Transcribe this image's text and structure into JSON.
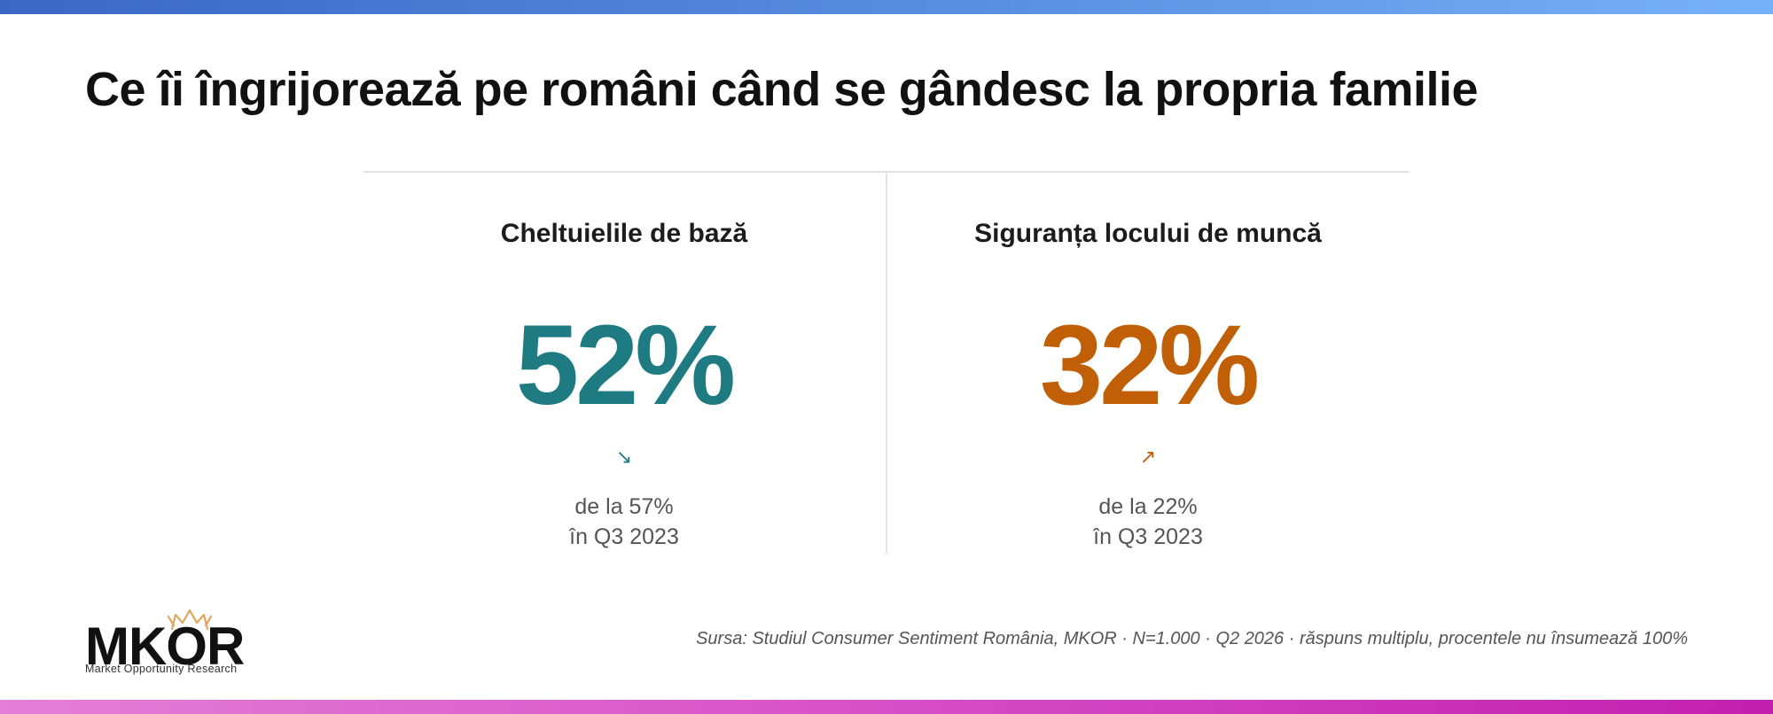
{
  "header": {
    "title": "Ce îi îngrijorează pe români când se gândesc la propria familie"
  },
  "stats": [
    {
      "label": "Cheltuielile de bază",
      "value": "52%",
      "color": "#1f7b82",
      "arrow": "↘",
      "note_line1": "de la 57%",
      "note_line2": "în Q3 2023"
    },
    {
      "label": "Siguranța locului de muncă",
      "value": "32%",
      "color": "#c05f06",
      "arrow": "↗",
      "note_line1": "de la 22%",
      "note_line2": "în Q3 2023"
    }
  ],
  "footer": {
    "logo_text": "MKOR",
    "logo_subtitle": "Market Opportunity Research",
    "source": "Sursa: Studiul Consumer Sentiment România, MKOR · N=1.000 · Q2 2026 · răspuns multiplu, procentele nu însumează 100%"
  },
  "colors": {
    "top_bar": "#4a7bd4",
    "bottom_bar": "#d43fc0",
    "logo_accent": "#e0a560"
  }
}
